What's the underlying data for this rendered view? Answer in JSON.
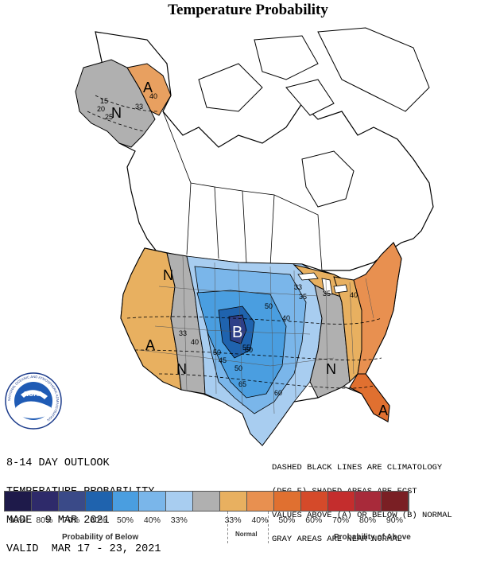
{
  "title": "Temperature Probability",
  "info_left": {
    "line1": "8-14 DAY OUTLOOK",
    "line2": "TEMPERATURE PROBABILITY",
    "line3": "MADE  9 MAR 2021",
    "line4": "VALID  MAR 17 - 23, 2021"
  },
  "info_right": {
    "line1": "DASHED BLACK LINES ARE CLIMATOLOGY",
    "line2": "(DEG F) SHADED AREAS ARE FCST",
    "line3": "VALUES ABOVE (A) OR BELOW (B) NORMAL",
    "line4": "GRAY AREAS ARE NEAR-NORMAL"
  },
  "logo": {
    "text": "NOAA",
    "ring_text": "NATIONAL OCEANIC AND ATMOSPHERIC ADMINISTRATION"
  },
  "map_labels": {
    "alaska_above": "A",
    "alaska_normal": "N",
    "west_normal": "N",
    "west_above": "A",
    "southwest_normal": "N",
    "central_below": "B",
    "east_normal": "N",
    "florida_above": "A"
  },
  "climatology_labels": [
    "15",
    "20",
    "25",
    "40",
    "33",
    "33",
    "40",
    "50",
    "45",
    "50",
    "55",
    "60",
    "65",
    "50",
    "40",
    "35",
    "35",
    "33",
    "40",
    "60"
  ],
  "legend": {
    "below_label": "Probability of Below",
    "normal_label": "Normal",
    "above_label": "Probability of Above",
    "percent_labels": [
      "90%",
      "80%",
      "70%",
      "60%",
      "50%",
      "40%",
      "33%",
      "",
      "33%",
      "40%",
      "50%",
      "60%",
      "70%",
      "80%",
      "90%"
    ],
    "colors": [
      "#1e1a4a",
      "#2e2a6a",
      "#3a4a88",
      "#1f63ae",
      "#4a9ee0",
      "#7ab6ea",
      "#a8cdf0",
      "#b0b0b0",
      "#e8b060",
      "#e89050",
      "#e07030",
      "#d54a2a",
      "#c42d2d",
      "#a82a3a",
      "#7a1f24"
    ]
  },
  "colors": {
    "above_40": "#e8b060",
    "above_50": "#e89050",
    "above_60": "#e07030",
    "below_40": "#a8cdf0",
    "below_50": "#7ab6ea",
    "below_60": "#4a9ee0",
    "below_70": "#1f63ae",
    "below_80": "#2e3f88",
    "normal": "#b0b0b0"
  }
}
